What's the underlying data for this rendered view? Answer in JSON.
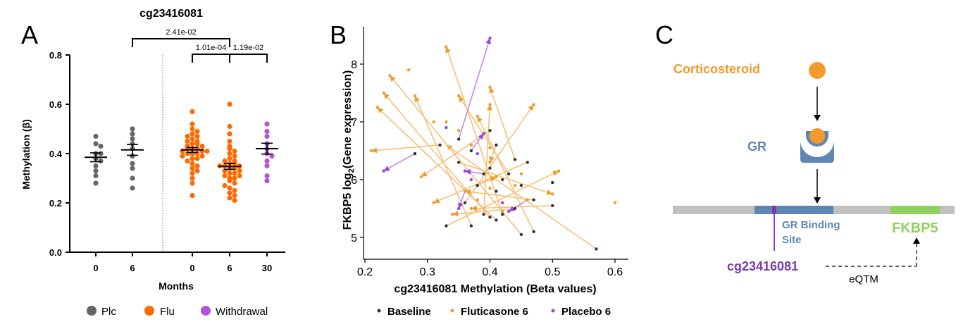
{
  "colors": {
    "plc": "#666666",
    "flu": "#ff6a00",
    "withdrawal": "#b455d8",
    "fluticasone": "#f39a2c",
    "placebo": "#9b45d9",
    "baseline": "#333333",
    "arrow_flu": "#f5c07a",
    "gr": "#5f86b3",
    "fkbp5": "#8fd15f",
    "track": "#c0c0c0"
  },
  "panels": {
    "a": {
      "letter": "A",
      "title": "cg23416081",
      "ylabel": "Methylation (β)",
      "xlabel": "Months",
      "legend": [
        {
          "label": "Plc",
          "color": "#666666"
        },
        {
          "label": "Flu",
          "color": "#ff6a00"
        },
        {
          "label": "Withdrawal",
          "color": "#b455d8"
        }
      ]
    },
    "b": {
      "letter": "B",
      "ylabel_main": "FKBP5 log",
      "ylabel_sub": "2",
      "ylabel_rest": "(Gene expression)",
      "xlabel": "cg23416081 Methylation (Beta values)",
      "legend": [
        {
          "label": "Baseline",
          "color": "#333333"
        },
        {
          "label": "Fluticasone 6",
          "color": "#f39a2c"
        },
        {
          "label": "Placebo 6",
          "color": "#9b45d9"
        }
      ]
    },
    "c": {
      "letter": "C",
      "corticosteroid": "Corticosteroid",
      "gr": "GR",
      "binding_line1": "GR Binding",
      "binding_line2": "Site",
      "fkbp5": "FKBP5",
      "cpg": "cg23416081",
      "eqtm": "eQTM"
    }
  },
  "chart_data": [
    {
      "type": "scatter",
      "panel": "A",
      "title": "cg23416081",
      "xlabel": "Months",
      "ylabel": "Methylation (β)",
      "ylim": [
        0,
        0.8
      ],
      "yticks": [
        "0.0",
        "0.2",
        "0.4",
        "0.6",
        "0.8"
      ],
      "groups": [
        {
          "tick": "0",
          "series": "Plc",
          "color": "#666666",
          "mean": 0.385,
          "sem": 0.018,
          "values": [
            0.47,
            0.44,
            0.43,
            0.4,
            0.4,
            0.38,
            0.37,
            0.35,
            0.33,
            0.31,
            0.28
          ]
        },
        {
          "tick": "6",
          "series": "Plc",
          "color": "#666666",
          "mean": 0.415,
          "sem": 0.022,
          "values": [
            0.5,
            0.48,
            0.46,
            0.44,
            0.42,
            0.39,
            0.36,
            0.34,
            0.3,
            0.26
          ]
        },
        {
          "tick": "0",
          "series": "Flu",
          "color": "#ff6a00",
          "mean": 0.415,
          "sem": 0.01,
          "values": [
            0.57,
            0.52,
            0.5,
            0.49,
            0.48,
            0.47,
            0.47,
            0.46,
            0.45,
            0.45,
            0.44,
            0.44,
            0.43,
            0.43,
            0.42,
            0.42,
            0.42,
            0.41,
            0.41,
            0.41,
            0.4,
            0.4,
            0.4,
            0.39,
            0.39,
            0.38,
            0.38,
            0.37,
            0.36,
            0.35,
            0.34,
            0.33,
            0.32,
            0.3,
            0.28,
            0.23
          ]
        },
        {
          "tick": "6",
          "series": "Flu",
          "color": "#ff6a00",
          "mean": 0.348,
          "sem": 0.012,
          "values": [
            0.6,
            0.51,
            0.48,
            0.45,
            0.43,
            0.42,
            0.41,
            0.4,
            0.39,
            0.38,
            0.37,
            0.37,
            0.36,
            0.36,
            0.35,
            0.35,
            0.35,
            0.34,
            0.34,
            0.33,
            0.33,
            0.32,
            0.32,
            0.31,
            0.31,
            0.3,
            0.3,
            0.29,
            0.28,
            0.27,
            0.26,
            0.25,
            0.24,
            0.23,
            0.22,
            0.21
          ]
        },
        {
          "tick": "30",
          "series": "Withdrawal",
          "color": "#b455d8",
          "mean": 0.42,
          "sem": 0.022,
          "values": [
            0.52,
            0.49,
            0.47,
            0.44,
            0.42,
            0.4,
            0.39,
            0.37,
            0.35,
            0.31,
            0.29
          ]
        }
      ],
      "comparisons": [
        {
          "from_group": 1,
          "to_group": 3,
          "label": "2.41e-02",
          "level": 2
        },
        {
          "from_group": 2,
          "to_group": 3,
          "label": "1.01e-04",
          "level": 1
        },
        {
          "from_group": 3,
          "to_group": 4,
          "label": "1.19e-02",
          "level": 1
        }
      ]
    },
    {
      "type": "scatter",
      "panel": "B",
      "xlabel": "cg23416081 Methylation (Beta values)",
      "ylabel": "FKBP5 log2(Gene expression)",
      "xlim": [
        0.2,
        0.62
      ],
      "ylim": [
        4.85,
        8.6
      ],
      "xticks": [
        0.2,
        0.3,
        0.4,
        0.5,
        0.6
      ],
      "yticks": [
        5,
        6,
        7,
        8
      ],
      "series": [
        {
          "name": "Baseline",
          "color": "#333333",
          "points": [
            [
              0.32,
              6.6
            ],
            [
              0.35,
              6.3
            ],
            [
              0.37,
              6.5
            ],
            [
              0.39,
              6.8
            ],
            [
              0.4,
              6.85
            ],
            [
              0.41,
              6.6
            ],
            [
              0.4,
              6.2
            ],
            [
              0.42,
              6.0
            ],
            [
              0.43,
              6.1
            ],
            [
              0.44,
              6.35
            ],
            [
              0.45,
              5.9
            ],
            [
              0.46,
              6.3
            ],
            [
              0.47,
              5.65
            ],
            [
              0.5,
              5.95
            ],
            [
              0.5,
              5.55
            ],
            [
              0.57,
              4.8
            ],
            [
              0.45,
              5.05
            ],
            [
              0.41,
              5.3
            ],
            [
              0.39,
              5.4
            ],
            [
              0.42,
              5.4
            ],
            [
              0.37,
              5.2
            ],
            [
              0.33,
              5.2
            ],
            [
              0.28,
              6.45
            ],
            [
              0.36,
              5.6
            ],
            [
              0.38,
              5.9
            ],
            [
              0.41,
              5.8
            ],
            [
              0.44,
              5.5
            ],
            [
              0.47,
              5.1
            ],
            [
              0.4,
              5.35
            ],
            [
              0.35,
              6.7
            ],
            [
              0.39,
              6.1
            ]
          ]
        },
        {
          "name": "Fluticasone 6",
          "color": "#f39a2c",
          "points": [
            [
              0.24,
              7.8
            ],
            [
              0.23,
              7.5
            ],
            [
              0.22,
              7.25
            ],
            [
              0.27,
              7.9
            ],
            [
              0.28,
              7.45
            ],
            [
              0.33,
              8.3
            ],
            [
              0.35,
              7.45
            ],
            [
              0.4,
              7.6
            ],
            [
              0.4,
              7.3
            ],
            [
              0.38,
              7.1
            ],
            [
              0.33,
              7.0
            ],
            [
              0.35,
              6.85
            ],
            [
              0.4,
              6.55
            ],
            [
              0.4,
              6.3
            ],
            [
              0.41,
              6.05
            ],
            [
              0.4,
              5.85
            ],
            [
              0.36,
              5.8
            ],
            [
              0.31,
              5.6
            ],
            [
              0.34,
              5.4
            ],
            [
              0.37,
              5.5
            ],
            [
              0.47,
              7.3
            ],
            [
              0.51,
              6.15
            ],
            [
              0.5,
              5.75
            ],
            [
              0.46,
              5.65
            ],
            [
              0.21,
              6.5
            ],
            [
              0.29,
              6.05
            ],
            [
              0.37,
              6.6
            ],
            [
              0.44,
              5.9
            ],
            [
              0.6,
              5.6
            ],
            [
              0.38,
              5.65
            ],
            [
              0.42,
              5.45
            ],
            [
              0.31,
              7.0
            ],
            [
              0.39,
              6.8
            ],
            [
              0.45,
              6.1
            ]
          ]
        },
        {
          "name": "Placebo 6",
          "color": "#9b45d9",
          "points": [
            [
              0.4,
              8.45
            ],
            [
              0.39,
              6.8
            ],
            [
              0.36,
              6.15
            ],
            [
              0.37,
              6.0
            ],
            [
              0.35,
              5.5
            ],
            [
              0.43,
              5.45
            ],
            [
              0.23,
              6.15
            ],
            [
              0.38,
              6.45
            ],
            [
              0.42,
              5.6
            ],
            [
              0.33,
              6.9
            ]
          ]
        }
      ],
      "arrows": [
        {
          "series": "Fluticasone 6",
          "from": [
            0.57,
            4.8
          ],
          "to": [
            0.33,
            6.6
          ]
        },
        {
          "series": "Fluticasone 6",
          "from": [
            0.45,
            5.05
          ],
          "to": [
            0.24,
            7.8
          ]
        },
        {
          "series": "Fluticasone 6",
          "from": [
            0.4,
            5.35
          ],
          "to": [
            0.23,
            7.5
          ]
        },
        {
          "series": "Fluticasone 6",
          "from": [
            0.41,
            5.3
          ],
          "to": [
            0.22,
            7.25
          ]
        },
        {
          "series": "Fluticasone 6",
          "from": [
            0.37,
            5.2
          ],
          "to": [
            0.28,
            7.45
          ]
        },
        {
          "series": "Fluticasone 6",
          "from": [
            0.42,
            5.4
          ],
          "to": [
            0.33,
            8.3
          ]
        },
        {
          "series": "Fluticasone 6",
          "from": [
            0.43,
            6.1
          ],
          "to": [
            0.35,
            7.45
          ]
        },
        {
          "series": "Fluticasone 6",
          "from": [
            0.44,
            6.35
          ],
          "to": [
            0.4,
            7.6
          ]
        },
        {
          "series": "Fluticasone 6",
          "from": [
            0.39,
            5.4
          ],
          "to": [
            0.4,
            7.3
          ]
        },
        {
          "series": "Fluticasone 6",
          "from": [
            0.47,
            5.1
          ],
          "to": [
            0.38,
            7.1
          ]
        },
        {
          "series": "Fluticasone 6",
          "from": [
            0.36,
            5.6
          ],
          "to": [
            0.47,
            7.3
          ]
        },
        {
          "series": "Fluticasone 6",
          "from": [
            0.33,
            5.2
          ],
          "to": [
            0.51,
            6.15
          ]
        },
        {
          "series": "Fluticasone 6",
          "from": [
            0.35,
            6.3
          ],
          "to": [
            0.5,
            5.75
          ]
        },
        {
          "series": "Fluticasone 6",
          "from": [
            0.32,
            6.6
          ],
          "to": [
            0.21,
            6.5
          ]
        },
        {
          "series": "Fluticasone 6",
          "from": [
            0.4,
            6.85
          ],
          "to": [
            0.29,
            6.05
          ]
        },
        {
          "series": "Fluticasone 6",
          "from": [
            0.46,
            6.3
          ],
          "to": [
            0.31,
            5.6
          ]
        },
        {
          "series": "Fluticasone 6",
          "from": [
            0.44,
            5.5
          ],
          "to": [
            0.34,
            5.4
          ]
        },
        {
          "series": "Fluticasone 6",
          "from": [
            0.5,
            5.55
          ],
          "to": [
            0.37,
            5.5
          ]
        },
        {
          "series": "Fluticasone 6",
          "from": [
            0.41,
            6.6
          ],
          "to": [
            0.4,
            6.3
          ]
        },
        {
          "series": "Fluticasone 6",
          "from": [
            0.38,
            5.9
          ],
          "to": [
            0.41,
            6.05
          ]
        },
        {
          "series": "Fluticasone 6",
          "from": [
            0.47,
            5.65
          ],
          "to": [
            0.36,
            5.8
          ]
        },
        {
          "series": "Placebo 6",
          "from": [
            0.35,
            6.7
          ],
          "to": [
            0.4,
            8.45
          ]
        },
        {
          "series": "Placebo 6",
          "from": [
            0.37,
            6.5
          ],
          "to": [
            0.39,
            6.8
          ]
        },
        {
          "series": "Placebo 6",
          "from": [
            0.39,
            6.1
          ],
          "to": [
            0.36,
            6.15
          ]
        },
        {
          "series": "Placebo 6",
          "from": [
            0.28,
            6.45
          ],
          "to": [
            0.23,
            6.15
          ]
        },
        {
          "series": "Placebo 6",
          "from": [
            0.46,
            5.65
          ],
          "to": [
            0.43,
            5.45
          ]
        },
        {
          "series": "Placebo 6",
          "from": [
            0.36,
            5.8
          ],
          "to": [
            0.35,
            5.5
          ]
        }
      ],
      "legend": "bottom"
    }
  ]
}
